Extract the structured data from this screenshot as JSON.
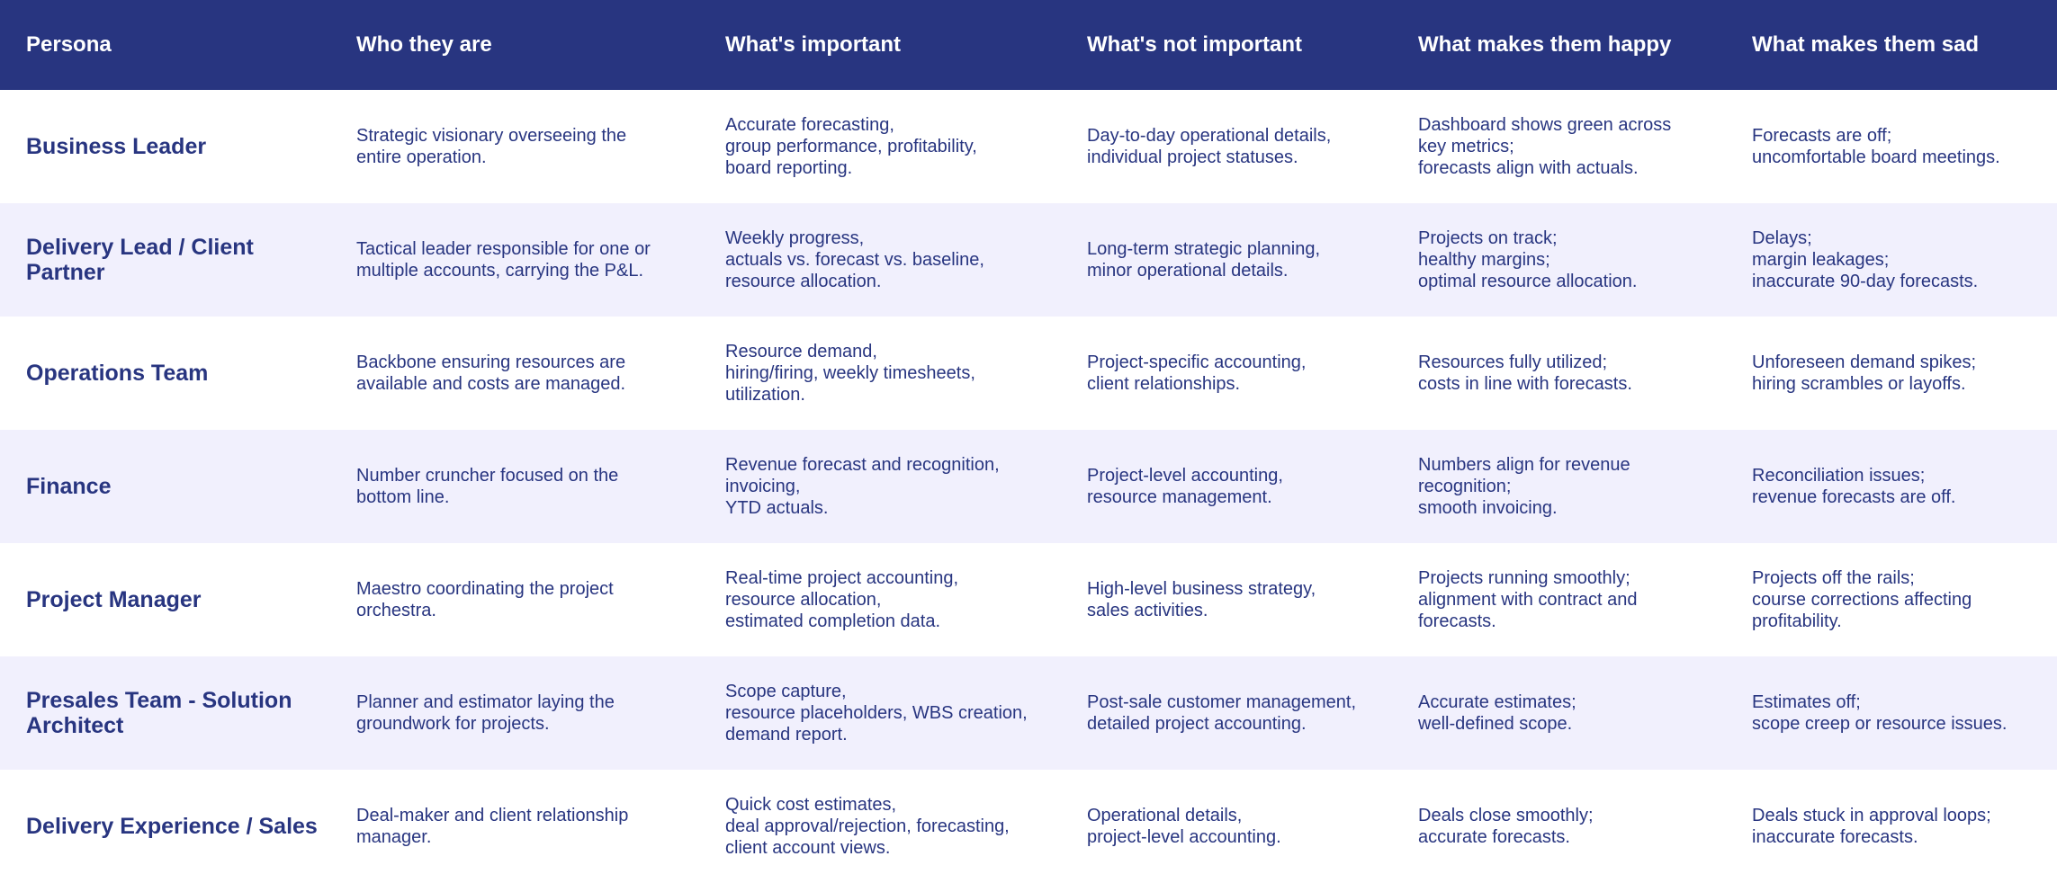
{
  "headers": [
    "Persona",
    "Who they are",
    "What's important",
    "What's not important",
    "What makes them happy",
    "What makes them sad"
  ],
  "colors": {
    "header_bg": "#283580",
    "header_text": "#ffffff",
    "body_text": "#283580",
    "alt_row_bg": "#f1f0fd",
    "row_bg": "#ffffff"
  },
  "rows": [
    {
      "persona": [
        "Business Leader"
      ],
      "who": [
        "Strategic visionary overseeing the",
        "entire operation."
      ],
      "important": [
        "Accurate forecasting,",
        "group performance, profitability,",
        "board reporting."
      ],
      "not_important": [
        "Day-to-day operational details,",
        "individual project statuses."
      ],
      "happy": [
        "Dashboard shows green across",
        "key metrics;",
        "forecasts align with actuals."
      ],
      "sad": [
        "Forecasts are off;",
        "uncomfortable board meetings."
      ]
    },
    {
      "persona": [
        "Delivery Lead / Client",
        "Partner"
      ],
      "who": [
        "Tactical leader responsible for one or",
        "multiple accounts, carrying the P&L."
      ],
      "important": [
        "Weekly progress,",
        "actuals vs. forecast vs. baseline,",
        "resource allocation."
      ],
      "not_important": [
        "Long-term strategic planning,",
        "minor operational details."
      ],
      "happy": [
        "Projects on track;",
        "healthy margins;",
        "optimal resource allocation."
      ],
      "sad": [
        "Delays;",
        "margin leakages;",
        "inaccurate 90-day forecasts."
      ]
    },
    {
      "persona": [
        "Operations Team"
      ],
      "who": [
        "Backbone ensuring resources are",
        "available and costs are managed."
      ],
      "important": [
        "Resource demand,",
        "hiring/firing, weekly timesheets,",
        "utilization."
      ],
      "not_important": [
        "Project-specific accounting,",
        "client relationships."
      ],
      "happy": [
        "Resources fully utilized;",
        "costs in line with forecasts."
      ],
      "sad": [
        "Unforeseen demand spikes;",
        "hiring scrambles or layoffs."
      ]
    },
    {
      "persona": [
        "Finance"
      ],
      "who": [
        "Number cruncher focused on the",
        "bottom line."
      ],
      "important": [
        "Revenue forecast and recognition,",
        "invoicing,",
        "YTD actuals."
      ],
      "not_important": [
        "Project-level accounting,",
        "resource management."
      ],
      "happy": [
        "Numbers align for revenue",
        "recognition;",
        "smooth invoicing."
      ],
      "sad": [
        "Reconciliation issues;",
        "revenue forecasts are off."
      ]
    },
    {
      "persona": [
        "Project Manager"
      ],
      "who": [
        "Maestro coordinating the project",
        "orchestra."
      ],
      "important": [
        "Real-time project accounting,",
        "resource allocation,",
        "estimated completion data."
      ],
      "not_important": [
        "High-level business strategy,",
        "sales activities."
      ],
      "happy": [
        "Projects running smoothly;",
        "alignment with contract and",
        "forecasts."
      ],
      "sad": [
        "Projects off the rails;",
        "course corrections affecting",
        "profitability."
      ]
    },
    {
      "persona": [
        "Presales Team - Solution",
        "Architect"
      ],
      "who": [
        "Planner and estimator laying the",
        "groundwork for projects."
      ],
      "important": [
        "Scope capture,",
        "resource placeholders, WBS creation,",
        "demand report."
      ],
      "not_important": [
        "Post-sale customer management,",
        "detailed project accounting."
      ],
      "happy": [
        "Accurate estimates;",
        "well-defined scope."
      ],
      "sad": [
        "Estimates off;",
        "scope creep or resource issues."
      ]
    },
    {
      "persona": [
        "Delivery Experience / Sales"
      ],
      "who": [
        "Deal-maker and client relationship",
        "manager."
      ],
      "important": [
        "Quick cost estimates,",
        "deal approval/rejection, forecasting,",
        "client account views."
      ],
      "not_important": [
        "Operational details,",
        "project-level accounting."
      ],
      "happy": [
        "Deals close smoothly;",
        "accurate forecasts."
      ],
      "sad": [
        "Deals stuck in approval loops;",
        "inaccurate forecasts."
      ]
    }
  ]
}
